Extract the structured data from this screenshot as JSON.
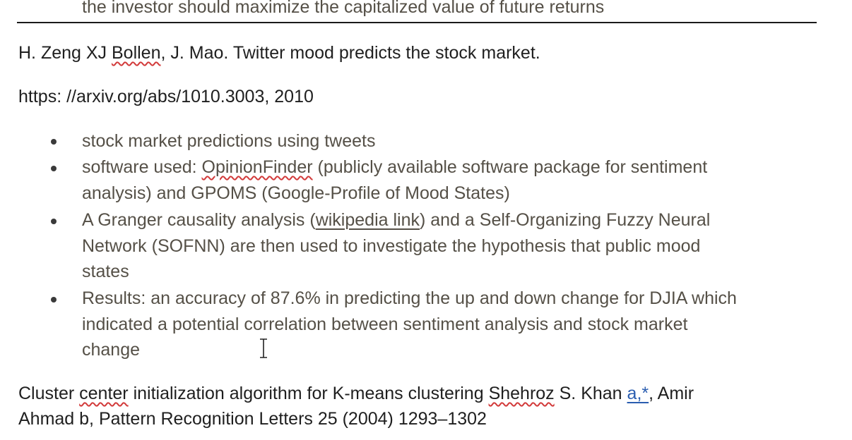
{
  "top_line": "the investor should maximize the capitalized value of future returns",
  "reference1": {
    "authors_pre": "H. Zeng XJ ",
    "author_misspelled": "Bollen",
    "authors_post": ", J. Mao. Twitter mood predicts the stock market.",
    "url_line": "https: //arxiv.org/abs/1010.3003, 2010"
  },
  "bullets": {
    "b1": "stock market predictions using tweets",
    "b2_pre": "software used: ",
    "b2_misspelled": "OpinionFinder",
    "b2_post": " (publicly available software package for sentiment",
    "b2_line2": "analysis) and GPOMS (Google-Profile of Mood States)",
    "b3_pre": "A Granger causality analysis (",
    "b3_link": "wikipedia link",
    "b3_post": ") and a Self-Organizing Fuzzy Neural",
    "b3_line2": "Network (SOFNN) are then used to investigate the hypothesis that public mood",
    "b3_line3": "states",
    "b4_line1": "Results: an accuracy of 87.6% in predicting the up and down change for DJIA which",
    "b4_line2": "indicated a potential correlation between sentiment analysis and stock market",
    "b4_line3": "change"
  },
  "reference2": {
    "line1_pre": "Cluster ",
    "line1_misspelled1": "center",
    "line1_mid": " initialization algorithm for K-means clustering ",
    "line1_misspelled2": "Shehroz",
    "line1_mid2": " S. Khan ",
    "line1_link": "a,*",
    "line1_post": ", Amir",
    "line2": "Ahmad b, Pattern Recognition Letters 25 (2004) 1293–1302"
  },
  "icons": {
    "cursor": "text-cursor-icon"
  }
}
